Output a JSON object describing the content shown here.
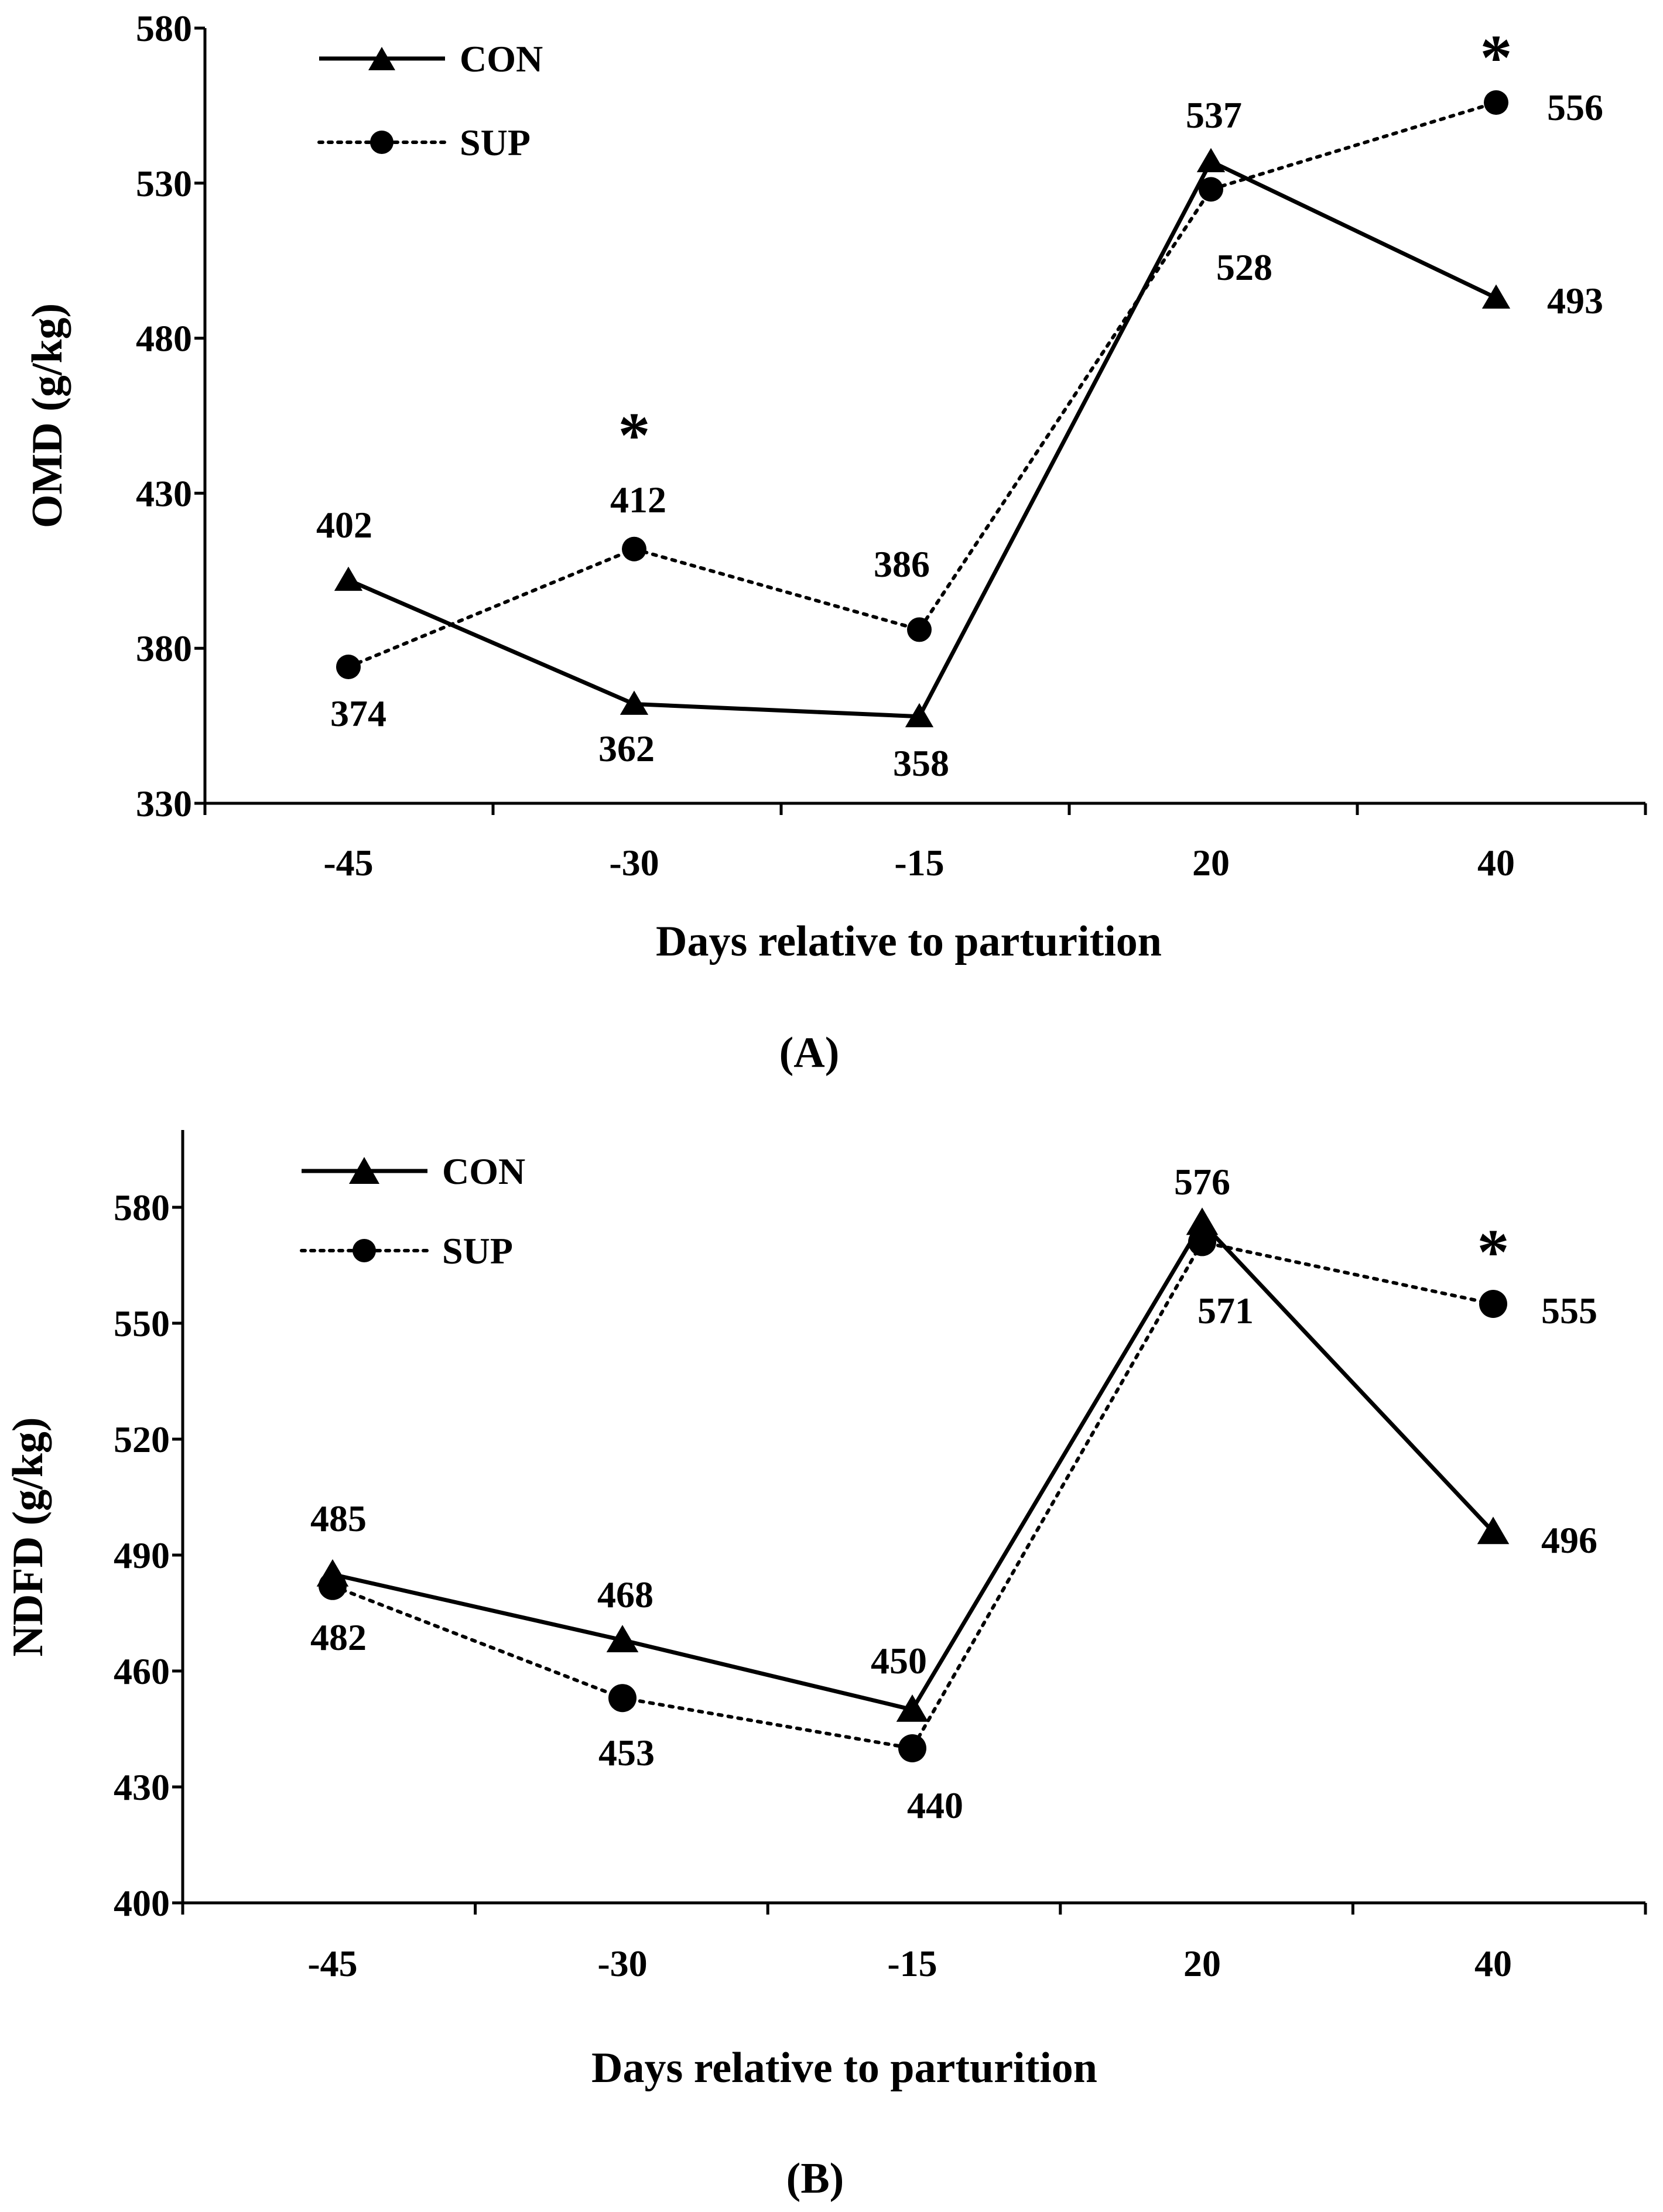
{
  "chart_data": [
    {
      "type": "line",
      "panel_label": "(A)",
      "xlabel": "Days relative to parturition",
      "ylabel": "OMD (g/kg)",
      "categories": [
        "-45",
        "-30",
        "-15",
        "20",
        "40"
      ],
      "ylim": [
        330,
        580
      ],
      "yticks": [
        330,
        380,
        430,
        480,
        530,
        580
      ],
      "legend_position": "top-left",
      "series": [
        {
          "name": "CON",
          "marker": "triangle",
          "line": "solid",
          "color": "#000000",
          "values": [
            402,
            362,
            358,
            537,
            493
          ]
        },
        {
          "name": "SUP",
          "marker": "circle",
          "line": "dotted",
          "color": "#000000",
          "values": [
            374,
            412,
            386,
            528,
            556
          ]
        }
      ],
      "data_labels": {
        "CON": [
          "402",
          "362",
          "358",
          "537",
          "493"
        ],
        "SUP": [
          "374",
          "412",
          "386",
          "528",
          "556"
        ]
      },
      "significance": {
        "symbol": "*",
        "categories": [
          "-30",
          "40"
        ]
      }
    },
    {
      "type": "line",
      "panel_label": "(B)",
      "xlabel": "Days relative to parturition",
      "ylabel": "NDFD (g/kg)",
      "categories": [
        "-45",
        "-30",
        "-15",
        "20",
        "40"
      ],
      "ylim": [
        400,
        600
      ],
      "yticks": [
        400,
        430,
        460,
        490,
        520,
        550,
        580
      ],
      "legend_position": "top-left",
      "series": [
        {
          "name": "CON",
          "marker": "triangle",
          "line": "solid",
          "color": "#000000",
          "values": [
            485,
            468,
            450,
            576,
            496
          ]
        },
        {
          "name": "SUP",
          "marker": "circle",
          "line": "dotted",
          "color": "#000000",
          "values": [
            482,
            453,
            440,
            571,
            555
          ]
        }
      ],
      "data_labels": {
        "CON": [
          "485",
          "468",
          "450",
          "576",
          "496"
        ],
        "SUP": [
          "482",
          "453",
          "440",
          "571",
          "555"
        ]
      },
      "significance": {
        "symbol": "*",
        "categories": [
          "40"
        ]
      }
    }
  ]
}
